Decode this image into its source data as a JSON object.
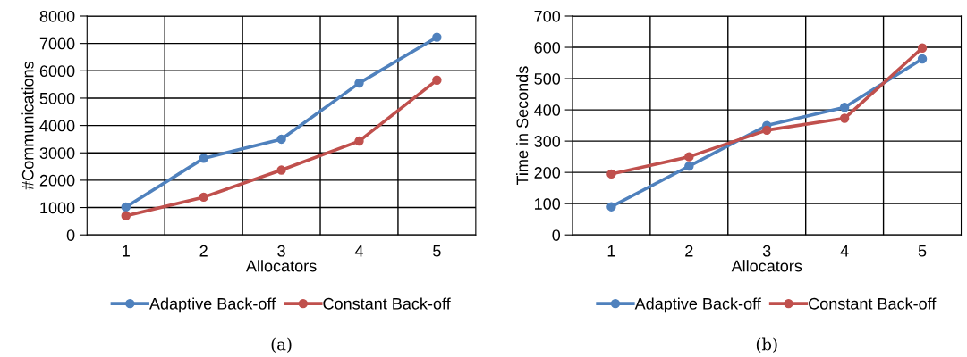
{
  "chart_data": [
    {
      "type": "line",
      "xlabel": "Allocators",
      "ylabel": "#Communications",
      "categories": [
        "1",
        "2",
        "3",
        "4",
        "5"
      ],
      "series": [
        {
          "name": "Adaptive Back-off",
          "color": "#4f81bd",
          "values": [
            1020,
            2800,
            3500,
            5550,
            7230
          ]
        },
        {
          "name": "Constant Back-off",
          "color": "#c0504d",
          "values": [
            700,
            1380,
            2370,
            3430,
            5660
          ]
        }
      ],
      "ylim": [
        0,
        8000
      ],
      "yticks": [
        0,
        1000,
        2000,
        3000,
        4000,
        5000,
        6000,
        7000,
        8000
      ],
      "grid": true,
      "legend": "bottom",
      "marker": "circle",
      "line_style": "solid",
      "annotations": [
        "(a)"
      ]
    },
    {
      "type": "line",
      "xlabel": "Allocators",
      "ylabel": "Time in Seconds",
      "categories": [
        "1",
        "2",
        "3",
        "4",
        "5"
      ],
      "series": [
        {
          "name": "Adaptive Back-off",
          "color": "#4f81bd",
          "values": [
            90,
            220,
            350,
            408,
            563
          ]
        },
        {
          "name": "Constant Back-off",
          "color": "#c0504d",
          "values": [
            195,
            250,
            335,
            373,
            598
          ]
        }
      ],
      "ylim": [
        0,
        700
      ],
      "yticks": [
        0,
        100,
        200,
        300,
        400,
        500,
        600,
        700
      ],
      "grid": true,
      "legend": "bottom",
      "marker": "circle",
      "line_style": "solid",
      "annotations": [
        "(b)"
      ]
    }
  ]
}
